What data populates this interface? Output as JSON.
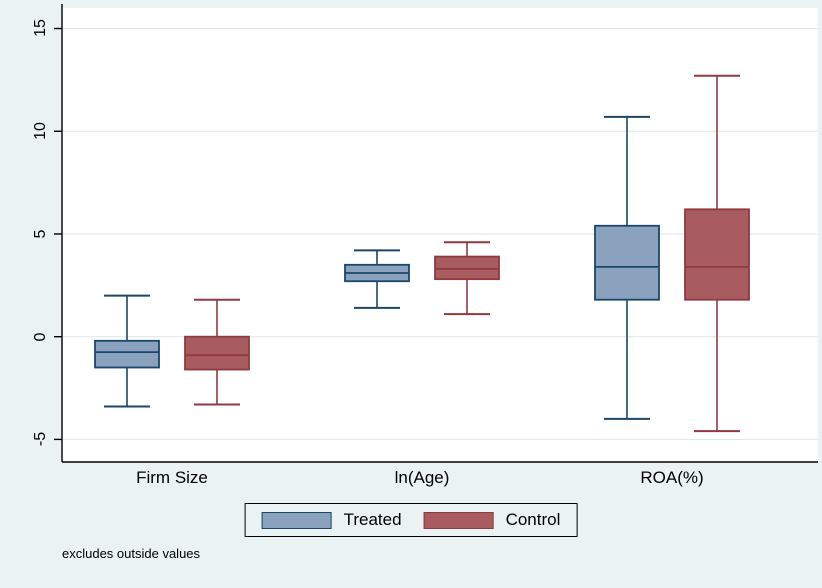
{
  "chart_data": {
    "type": "boxplot",
    "title": "",
    "categories": [
      "Firm Size",
      "ln(Age)",
      "ROA(%)"
    ],
    "series": [
      {
        "name": "Treated",
        "fill": "#8aa2bd",
        "stroke": "#1b4668",
        "boxes": [
          {
            "low": -3.4,
            "q1": -1.5,
            "median": -0.75,
            "q3": -0.2,
            "high": 2.0
          },
          {
            "low": 1.4,
            "q1": 2.7,
            "median": 3.1,
            "q3": 3.5,
            "high": 4.2
          },
          {
            "low": -4.0,
            "q1": 1.8,
            "median": 3.4,
            "q3": 5.4,
            "high": 10.7
          }
        ]
      },
      {
        "name": "Control",
        "fill": "#a85c60",
        "stroke": "#8f3a40",
        "boxes": [
          {
            "low": -3.3,
            "q1": -1.6,
            "median": -0.9,
            "q3": 0.0,
            "high": 1.8
          },
          {
            "low": 1.1,
            "q1": 2.8,
            "median": 3.3,
            "q3": 3.9,
            "high": 4.6
          },
          {
            "low": -4.6,
            "q1": 1.8,
            "median": 3.4,
            "q3": 6.2,
            "high": 12.7
          }
        ]
      }
    ],
    "yticks": [
      15,
      10,
      5,
      0,
      -5
    ],
    "ytick_labels": [
      "15",
      "10",
      "5",
      "0",
      "-5"
    ],
    "ylim": [
      -6.1,
      16.0
    ],
    "grid": true,
    "legend_position": "bottom",
    "note": "excludes outside values"
  },
  "legend": {
    "items": [
      {
        "label": "Treated",
        "fill": "#8aa2bd",
        "stroke": "#1b4668"
      },
      {
        "label": "Control",
        "fill": "#a85c60",
        "stroke": "#8f3a40"
      }
    ]
  },
  "colors": {
    "background": "#eaf2f3",
    "plot_background": "#ffffff",
    "grid": "#d9e6ee",
    "axis": "#000000"
  }
}
